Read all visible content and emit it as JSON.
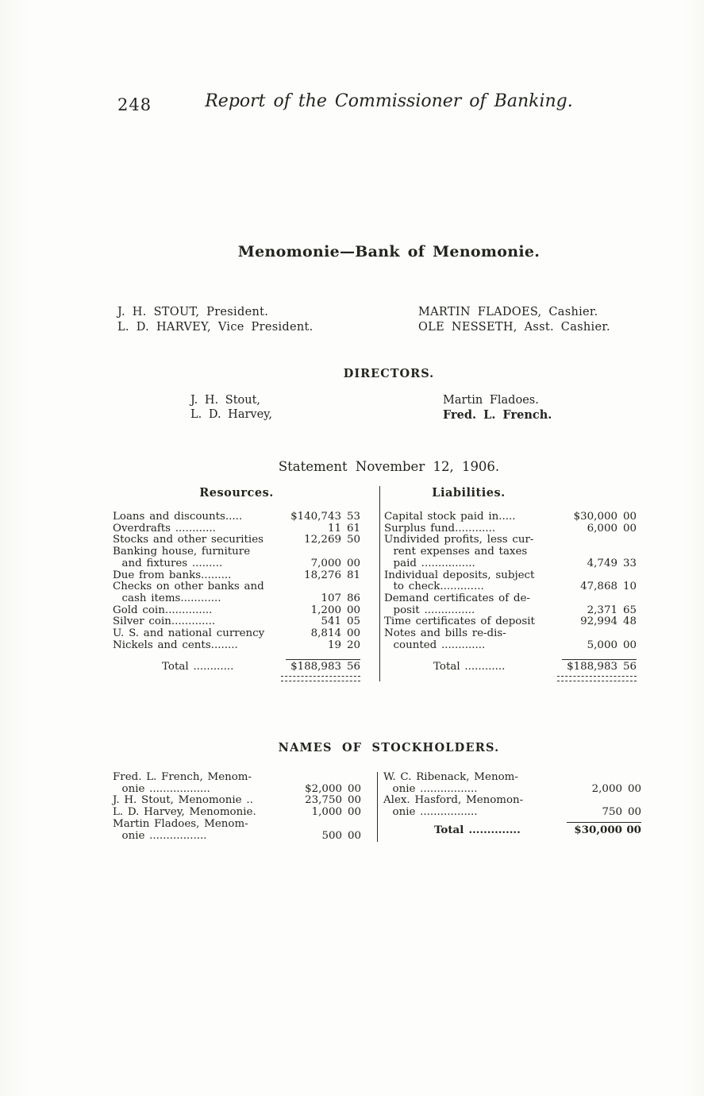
{
  "page": {
    "number": "248",
    "running_title": "Report of the Commissioner of Banking."
  },
  "title": "Menomonie—Bank of Menomonie.",
  "officers": {
    "left": [
      "J. H. STOUT, President.",
      "L. D. HARVEY, Vice President."
    ],
    "right": [
      "MARTIN FLADOES, Cashier.",
      "OLE NESSETH, Asst. Cashier."
    ]
  },
  "directors": {
    "heading": "DIRECTORS.",
    "left": [
      "J. H. Stout,",
      "L. D. Harvey,"
    ],
    "right": [
      "Martin Fladoes.",
      "Fred. L. French."
    ]
  },
  "statement": {
    "heading": "Statement November 12, 1906.",
    "resources": {
      "heading": "Resources.",
      "rows": [
        {
          "label": "Loans and discounts.....",
          "dollars": "$140,743",
          "cents": "53"
        },
        {
          "label": "Overdrafts ............",
          "dollars": "11",
          "cents": "61"
        },
        {
          "label": "Stocks and other securities",
          "dollars": "12,269",
          "cents": "50"
        },
        {
          "label": "Banking house, furniture\n  and fixtures .........",
          "dollars": "7,000",
          "cents": "00"
        },
        {
          "label": "Due from banks.........",
          "dollars": "18,276",
          "cents": "81"
        },
        {
          "label": "Checks on other banks and\n  cash items............",
          "dollars": "107",
          "cents": "86"
        },
        {
          "label": "Gold coin..............",
          "dollars": "1,200",
          "cents": "00"
        },
        {
          "label": "Silver coin.............",
          "dollars": "541",
          "cents": "05"
        },
        {
          "label": "U. S. and national currency",
          "dollars": "8,814",
          "cents": "00"
        },
        {
          "label": "Nickels and cents........",
          "dollars": "19",
          "cents": "20"
        }
      ],
      "total": {
        "label": "Total ............",
        "dollars": "$188,983",
        "cents": "56"
      }
    },
    "liabilities": {
      "heading": "Liabilities.",
      "rows": [
        {
          "label": "Capital stock paid in.....",
          "dollars": "$30,000",
          "cents": "00"
        },
        {
          "label": "Surplus fund............",
          "dollars": "6,000",
          "cents": "00"
        },
        {
          "label": "Undivided profits, less cur-\n  rent expenses and taxes\n  paid ................",
          "dollars": "4,749",
          "cents": "33"
        },
        {
          "label": "Individual deposits, subject\n  to check.............",
          "dollars": "47,868",
          "cents": "10"
        },
        {
          "label": "Demand certificates of de-\n  posit ...............",
          "dollars": "2,371",
          "cents": "65"
        },
        {
          "label": "Time certificates of deposit",
          "dollars": "92,994",
          "cents": "48"
        },
        {
          "label": "Notes and bills re-dis-\n  counted .............",
          "dollars": "5,000",
          "cents": "00"
        }
      ],
      "total": {
        "label": "Total ............",
        "dollars": "$188,983",
        "cents": "56"
      }
    }
  },
  "stockholders": {
    "heading": "NAMES OF STOCKHOLDERS.",
    "left_rows": [
      {
        "label": "Fred. L. French, Menom-\n  onie ..................",
        "dollars": "$2,000",
        "cents": "00"
      },
      {
        "label": "J. H. Stout, Menomonie ..",
        "dollars": "23,750",
        "cents": "00"
      },
      {
        "label": "L. D. Harvey, Menomonie.",
        "dollars": "1,000",
        "cents": "00"
      },
      {
        "label": "Martin Fladoes, Menom-\n  onie .................",
        "dollars": "500",
        "cents": "00"
      }
    ],
    "right_rows": [
      {
        "label": "W. C. Ribenack, Menom-\n  onie .................",
        "dollars": "2,000",
        "cents": "00"
      },
      {
        "label": "Alex. Hasford, Menomon-\n  onie .................",
        "dollars": "750",
        "cents": "00"
      }
    ],
    "total": {
      "label": "Total ..............",
      "dollars": "$30,000",
      "cents": "00"
    }
  }
}
